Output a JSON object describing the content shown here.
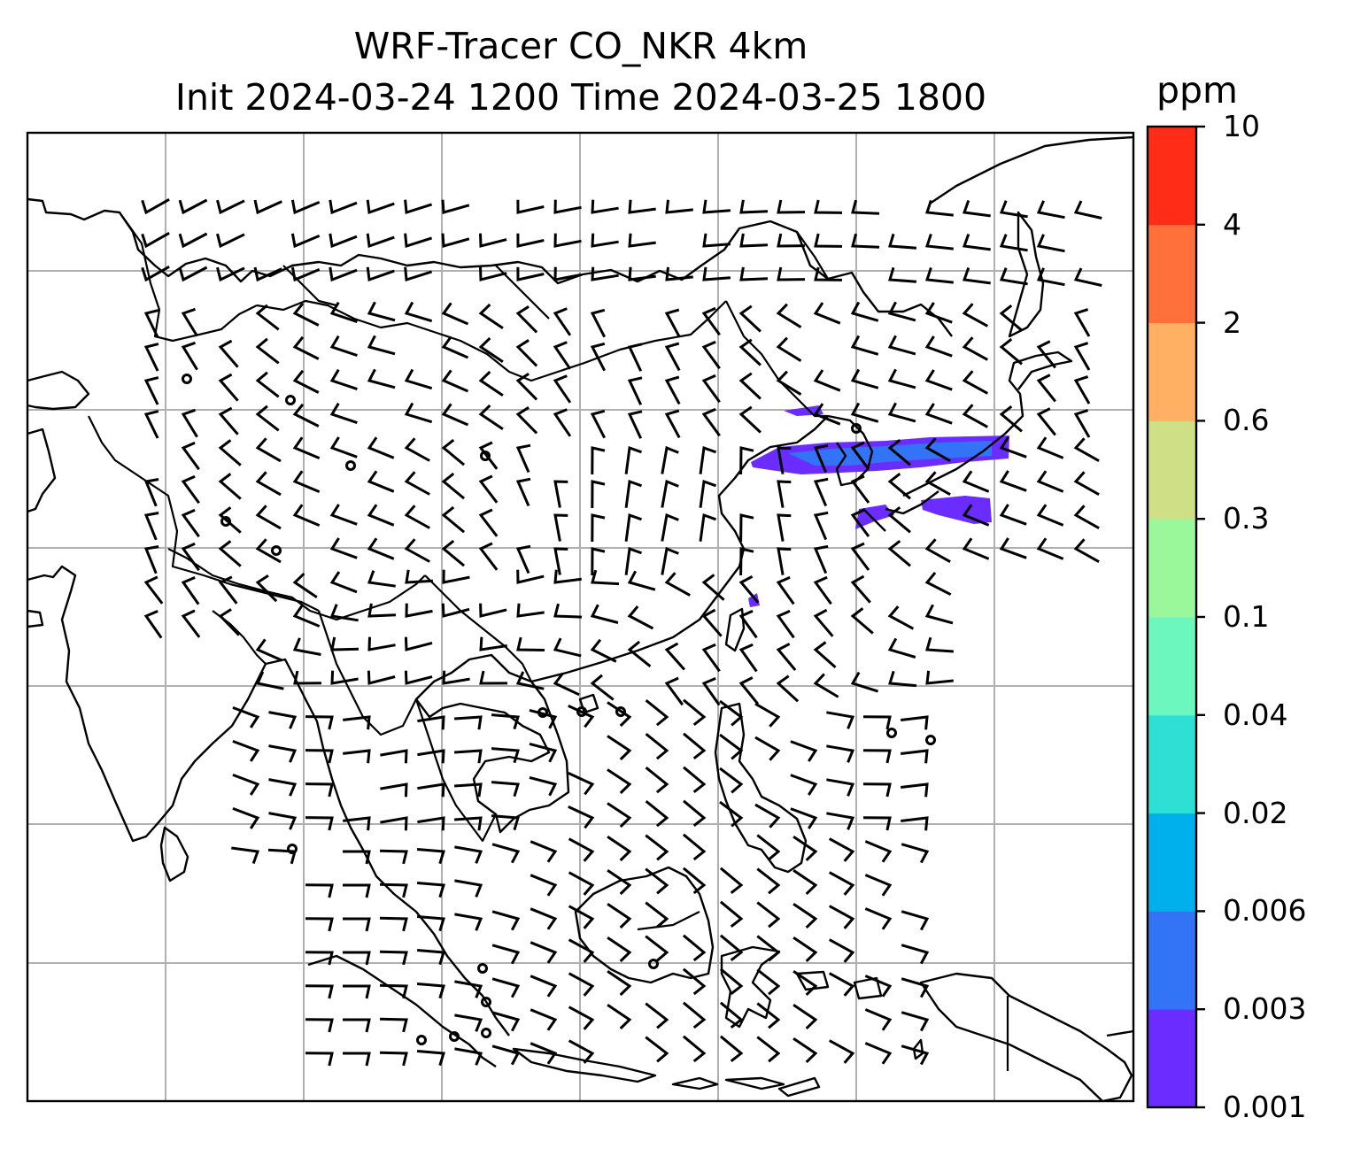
{
  "title": {
    "line1": "WRF-Tracer CO_NKR 4km",
    "line2": "Init 2024-03-24 1200 Time 2024-03-25 1800"
  },
  "colorbar": {
    "label": "ppm",
    "levels": [
      "0.001",
      "0.003",
      "0.006",
      "0.02",
      "0.04",
      "0.1",
      "0.3",
      "0.6",
      "2",
      "4",
      "10"
    ],
    "colors": [
      "#6a2cff",
      "#3373f5",
      "#00b0ed",
      "#2ee0d4",
      "#6bf7bd",
      "#9af79a",
      "#cfdf86",
      "#ffb062",
      "#ff703b",
      "#ff2d17"
    ]
  },
  "map": {
    "layers": [
      "coastlines",
      "country-borders",
      "gridlines",
      "wind-barbs",
      "co-tracer-plume"
    ],
    "wind_barb_color": "#000000",
    "gridline_color": "#b0b0b0",
    "plume_colors": [
      "#6a2cff",
      "#3373f5"
    ]
  }
}
